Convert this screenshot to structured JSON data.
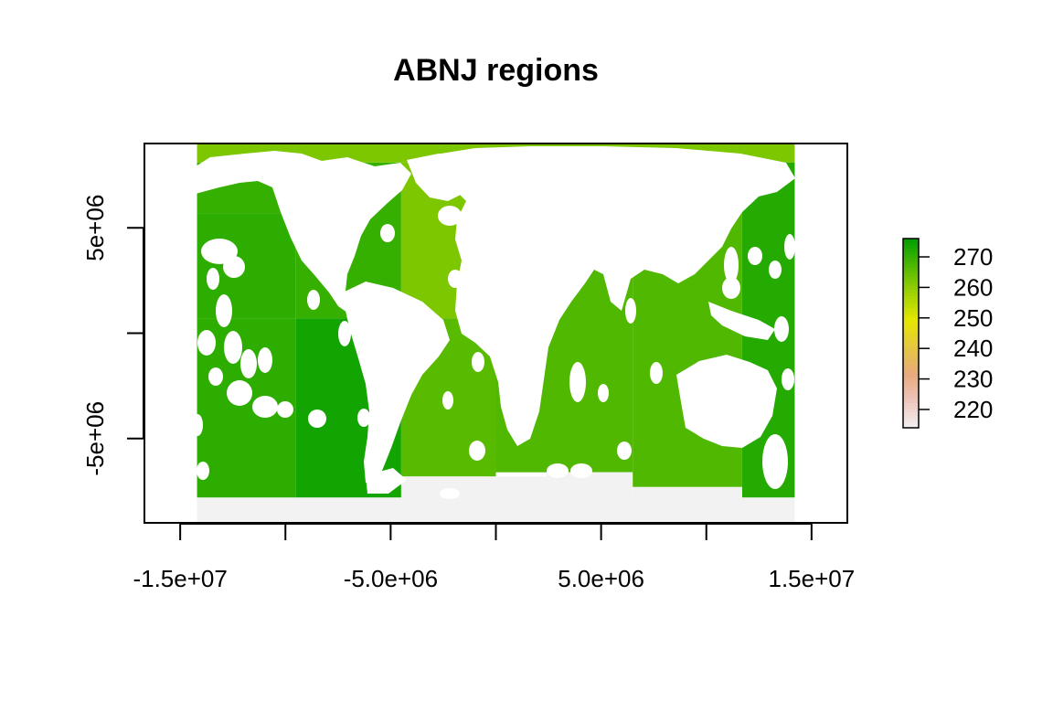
{
  "chart_data": {
    "type": "heatmap",
    "title": "ABNJ regions",
    "xlabel": "",
    "ylabel": "",
    "xlim": [
      -16700000,
      16700000
    ],
    "ylim": [
      -9000000,
      9000000
    ],
    "x_ticks": [
      -15000000,
      -10000000,
      -5000000,
      0,
      5000000,
      10000000,
      15000000
    ],
    "x_tick_labels": [
      {
        "value": -15000000,
        "label": "-1.5e+07"
      },
      {
        "value": -5000000,
        "label": "-5.0e+06"
      },
      {
        "value": 5000000,
        "label": "5.0e+06"
      },
      {
        "value": 15000000,
        "label": "1.5e+07"
      }
    ],
    "y_ticks": [
      -5000000,
      0,
      5000000
    ],
    "y_tick_labels": [
      {
        "value": -5000000,
        "label": "-5e+06"
      },
      {
        "value": 5000000,
        "label": "5e+06"
      }
    ],
    "grid": false,
    "legend": {
      "placement": "right",
      "min": 214,
      "max": 276,
      "ticks": [
        220,
        230,
        240,
        250,
        260,
        270
      ],
      "colors": [
        "#f2f2f2",
        "#eec6bd",
        "#e8a97c",
        "#e5c73f",
        "#e6e600",
        "#9fd200",
        "#4fb800",
        "#009e00"
      ]
    },
    "regions": [
      {
        "x0": -14200000,
        "x1": -9500000,
        "y0": 5700000,
        "y1": 8100000,
        "value": 270
      },
      {
        "x0": -14200000,
        "x1": -9500000,
        "y0": 700000,
        "y1": 5700000,
        "value": 271
      },
      {
        "x0": -9500000,
        "x1": -4500000,
        "y0": 700000,
        "y1": 8100000,
        "value": 270
      },
      {
        "x0": -14200000,
        "x1": -9500000,
        "y0": -7800000,
        "y1": 700000,
        "value": 271
      },
      {
        "x0": -9500000,
        "x1": -4500000,
        "y0": -7800000,
        "y1": 700000,
        "value": 274
      },
      {
        "x0": -14200000,
        "x1": 14200000,
        "y0": 8100000,
        "y1": 9000000,
        "value": 262
      },
      {
        "x0": -4500000,
        "x1": 0,
        "y0": 700000,
        "y1": 8100000,
        "value": 262
      },
      {
        "x0": -4500000,
        "x1": 0,
        "y0": -6800000,
        "y1": 700000,
        "value": 266
      },
      {
        "x0": 0,
        "x1": 6500000,
        "y0": -6600000,
        "y1": 8100000,
        "value": 267
      },
      {
        "x0": 6500000,
        "x1": 11700000,
        "y0": -7300000,
        "y1": 8100000,
        "value": 267
      },
      {
        "x0": 11700000,
        "x1": 14200000,
        "y0": -7800000,
        "y1": 8100000,
        "value": 272
      },
      {
        "x0": -14200000,
        "x1": 14200000,
        "y0": -9000000,
        "y1": -7800000,
        "value": 214
      },
      {
        "x0": -4500000,
        "x1": 2400000,
        "y0": -7800000,
        "y1": -6800000,
        "value": 214
      },
      {
        "x0": 2400000,
        "x1": 6500000,
        "y0": -7800000,
        "y1": -6600000,
        "value": 214
      },
      {
        "x0": 6500000,
        "x1": 11700000,
        "y0": -7800000,
        "y1": -7300000,
        "value": 214
      }
    ]
  }
}
